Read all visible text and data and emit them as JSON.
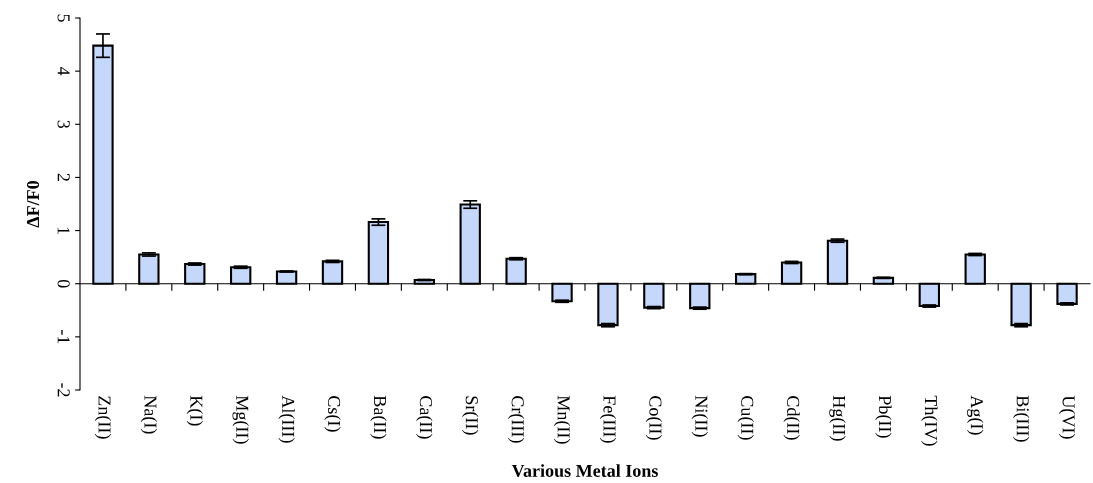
{
  "chart_data": {
    "type": "bar",
    "xlabel": "Various Metal Ions",
    "ylabel": "ΔF/F0",
    "categories": [
      "Zn(II)",
      "Na(I)",
      "K(I)",
      "Mg(II)",
      "Al(III)",
      "Cs(I)",
      "Ba(II)",
      "Ca(II)",
      "Sr(II)",
      "Cr(III)",
      "Mn(II)",
      "Fe(III)",
      "Co(II)",
      "Ni(II)",
      "Cu(II)",
      "Cd(II)",
      "Hg(II)",
      "Pb(II)",
      "Th(IV)",
      "Ag(I)",
      "Bi(III)",
      "U(VI)"
    ],
    "values": [
      4.48,
      0.55,
      0.37,
      0.31,
      0.23,
      0.42,
      1.16,
      0.07,
      1.49,
      0.47,
      -0.33,
      -0.78,
      -0.45,
      -0.46,
      0.18,
      0.4,
      0.81,
      0.11,
      -0.42,
      0.55,
      -0.78,
      -0.38
    ],
    "errors": [
      0.22,
      0.03,
      0.02,
      0.02,
      0.01,
      0.02,
      0.06,
      0.01,
      0.07,
      0.02,
      0.02,
      0.03,
      0.02,
      0.02,
      0.01,
      0.02,
      0.03,
      0.01,
      0.02,
      0.02,
      0.03,
      0.02
    ],
    "color": "#c5d7fb",
    "ylim": [
      -2,
      5
    ],
    "yticks": [
      -2,
      -1,
      0,
      1,
      2,
      3,
      4,
      5
    ]
  }
}
